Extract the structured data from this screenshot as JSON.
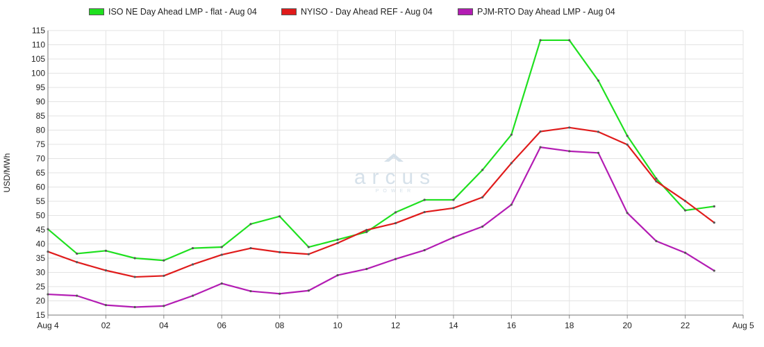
{
  "chart_data": {
    "type": "line",
    "xlabel": "",
    "ylabel": "USD/MWh",
    "ylim": [
      15,
      115
    ],
    "yticks": [
      15,
      20,
      25,
      30,
      35,
      40,
      45,
      50,
      55,
      60,
      65,
      70,
      75,
      80,
      85,
      90,
      95,
      100,
      105,
      110,
      115
    ],
    "x_hours": [
      0,
      1,
      2,
      3,
      4,
      5,
      6,
      7,
      8,
      9,
      10,
      11,
      12,
      13,
      14,
      15,
      16,
      17,
      18,
      19,
      20,
      21,
      22,
      23
    ],
    "x_tick_labels": [
      {
        "hour": 0,
        "label": "Aug 4"
      },
      {
        "hour": 2,
        "label": "02"
      },
      {
        "hour": 4,
        "label": "04"
      },
      {
        "hour": 6,
        "label": "06"
      },
      {
        "hour": 8,
        "label": "08"
      },
      {
        "hour": 10,
        "label": "10"
      },
      {
        "hour": 12,
        "label": "12"
      },
      {
        "hour": 14,
        "label": "14"
      },
      {
        "hour": 16,
        "label": "16"
      },
      {
        "hour": 18,
        "label": "18"
      },
      {
        "hour": 20,
        "label": "20"
      },
      {
        "hour": 22,
        "label": "22"
      },
      {
        "hour": 24,
        "label": "Aug 5"
      }
    ],
    "xlim": [
      0,
      24
    ],
    "grid": true,
    "legend_position": "top",
    "series": [
      {
        "name": "ISO NE Day Ahead LMP - flat - Aug 04",
        "color": "#1fe01f",
        "values": [
          45.2,
          36.6,
          37.6,
          35.0,
          34.2,
          38.5,
          38.9,
          47.0,
          49.7,
          38.9,
          41.5,
          44.2,
          51.1,
          55.5,
          55.5,
          66.0,
          78.4,
          111.6,
          111.6,
          97.4,
          78.0,
          63.0,
          51.8,
          53.2
        ]
      },
      {
        "name": "NYISO - Day Ahead REF - Aug 04",
        "color": "#e01b1b",
        "values": [
          37.3,
          33.6,
          30.7,
          28.4,
          28.8,
          32.8,
          36.2,
          38.5,
          37.1,
          36.4,
          40.3,
          44.9,
          47.3,
          51.2,
          52.6,
          56.4,
          68.4,
          79.5,
          80.9,
          79.4,
          74.9,
          62.0,
          55.1,
          47.5
        ]
      },
      {
        "name": "PJM-RTO Day Ahead LMP - Aug 04",
        "color": "#b31cb3",
        "values": [
          22.3,
          21.8,
          18.5,
          17.8,
          18.2,
          21.8,
          26.1,
          23.4,
          22.5,
          23.6,
          29.0,
          31.2,
          34.7,
          37.8,
          42.3,
          46.1,
          53.8,
          74.0,
          72.6,
          72.0,
          50.9,
          41.0,
          36.9,
          30.6
        ]
      }
    ]
  },
  "watermark": {
    "brand": "arcus",
    "subtitle": "POWER"
  }
}
